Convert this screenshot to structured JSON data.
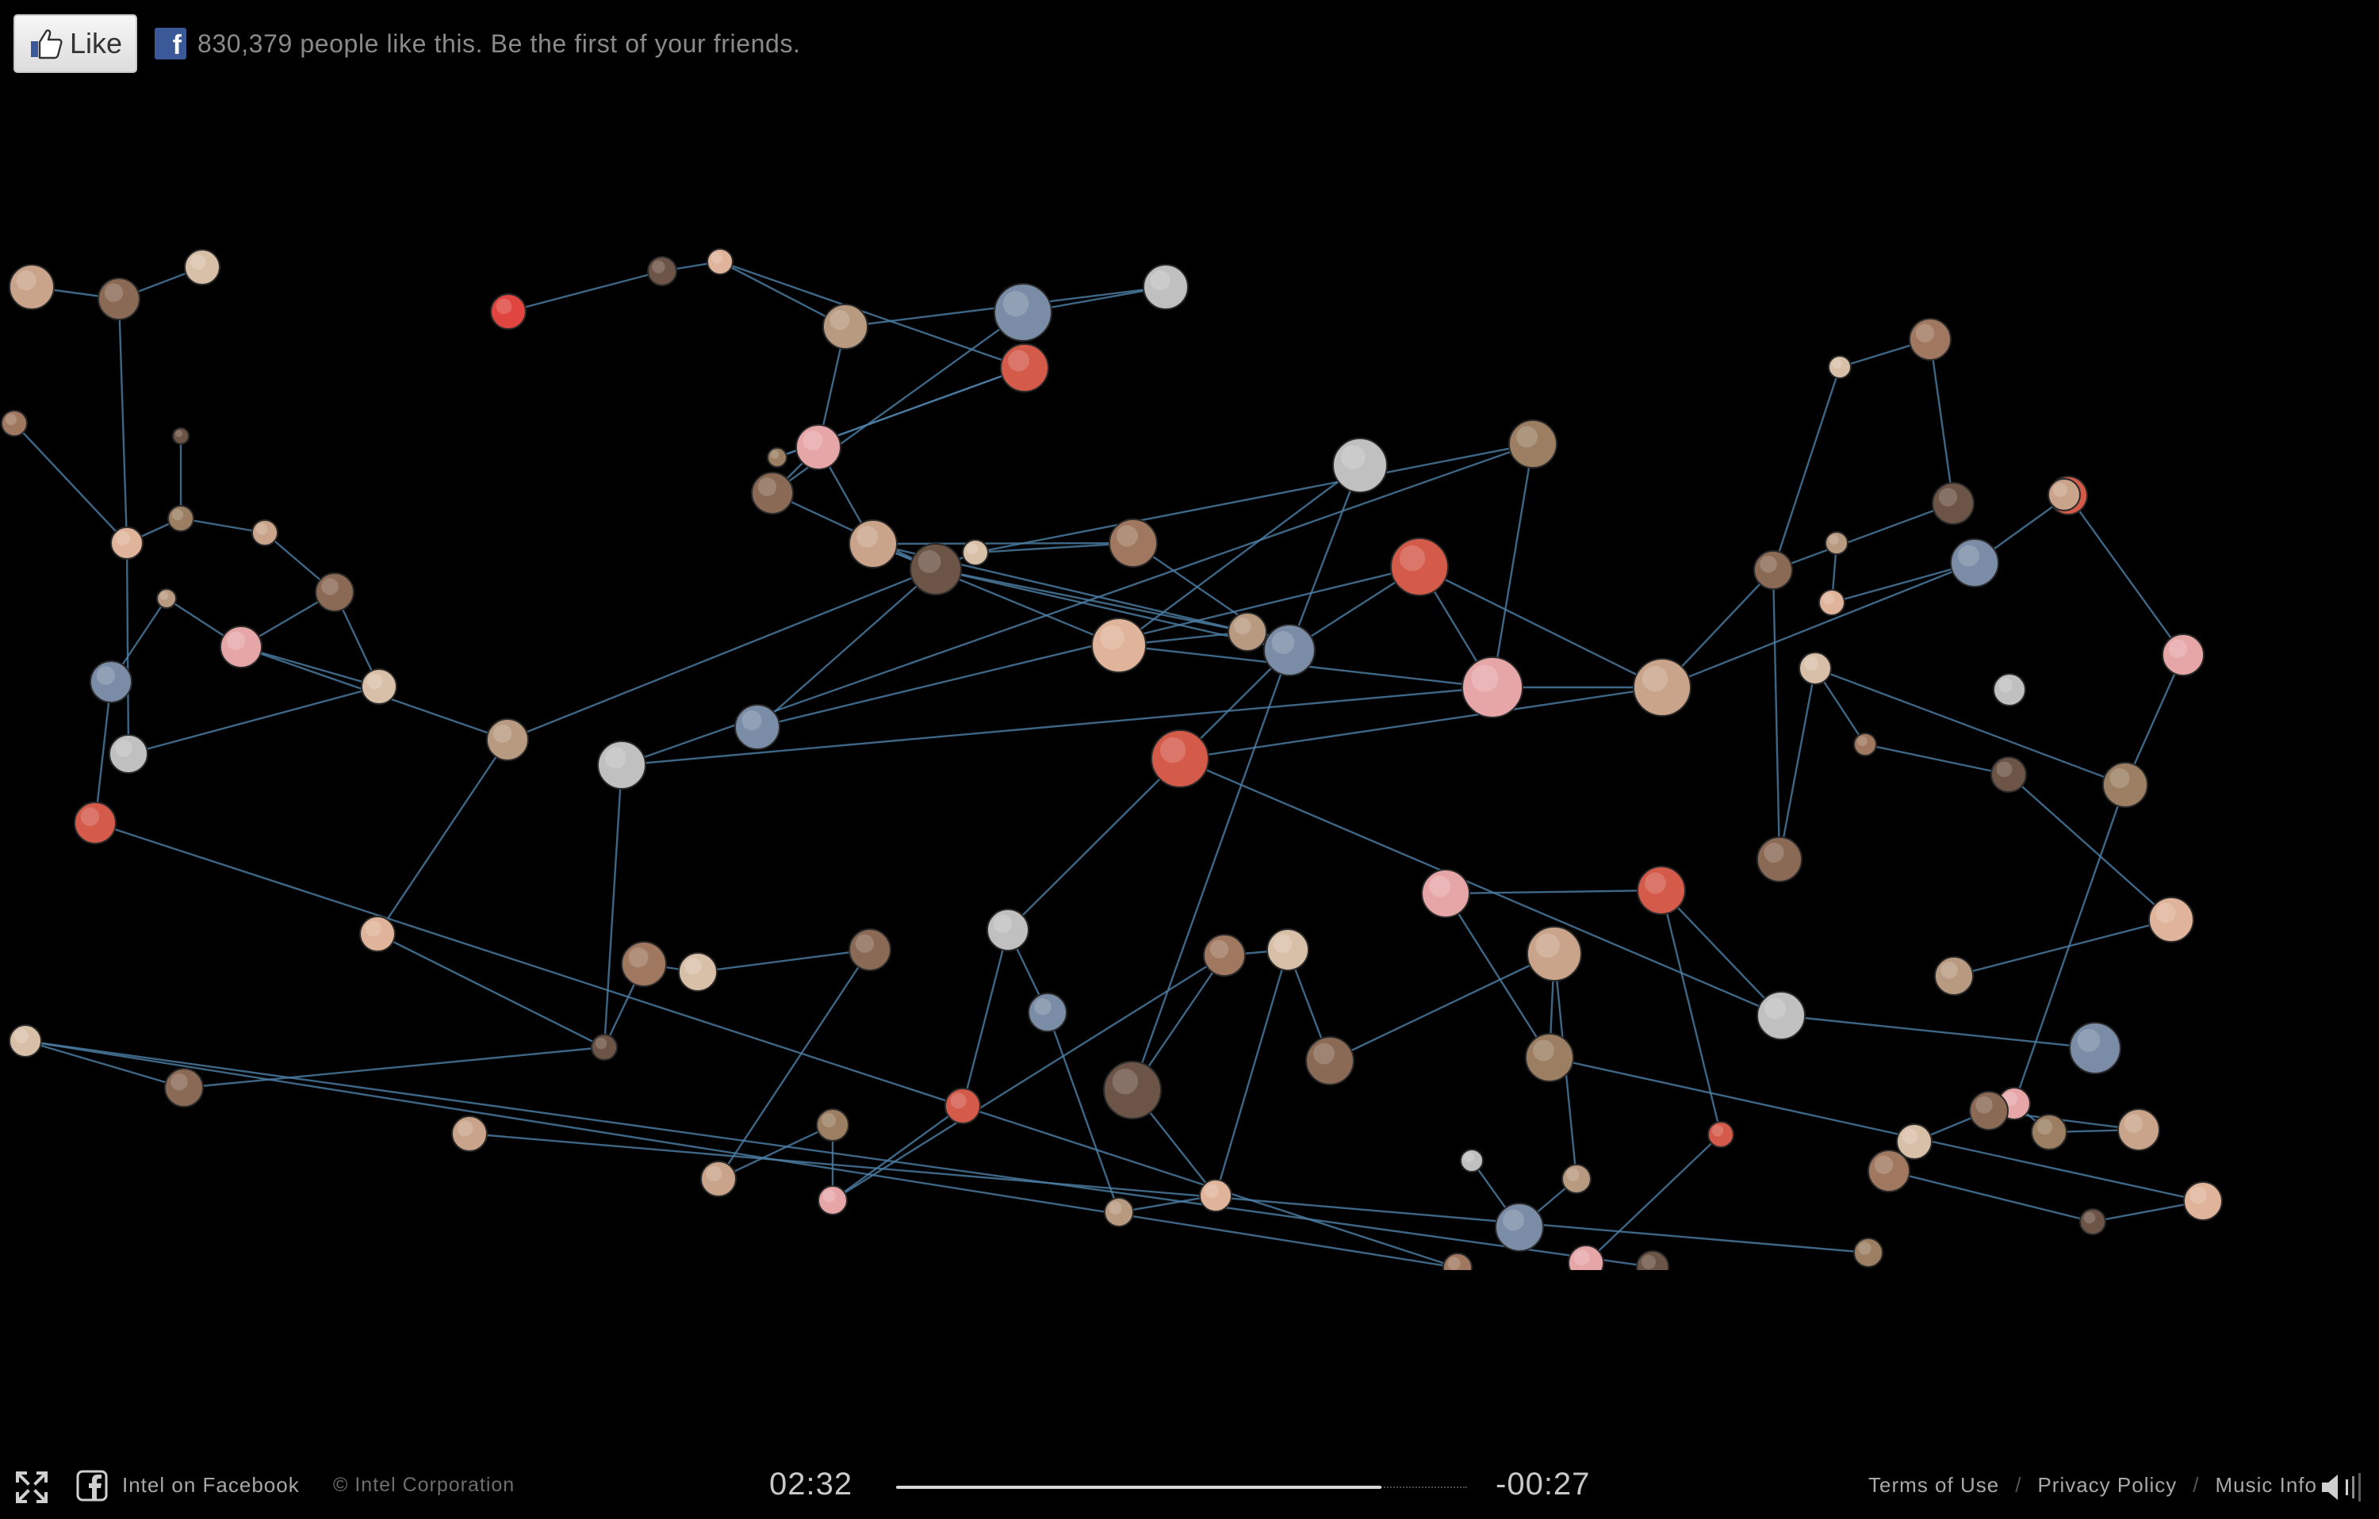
{
  "like_bar": {
    "like_label": "Like",
    "fb_badge_letter": "f",
    "like_text": "830,379 people like this. Be the first of your friends."
  },
  "footer": {
    "facebook_link": "Intel on Facebook",
    "copyright": "© Intel Corporation",
    "time_elapsed": "02:32",
    "time_remaining": "-00:27",
    "playback_progress": 0.85,
    "links": [
      "Terms of Use",
      "Privacy Policy",
      "Music Info"
    ],
    "separator": "/"
  },
  "icons": {
    "fullscreen": "fullscreen-icon",
    "facebook": "facebook-icon",
    "thumbs_up": "thumbs-up-icon",
    "volume": "volume-icon"
  },
  "colors": {
    "background": "#000000",
    "edge": "#4d7fa6",
    "facebook_blue": "#3b5998",
    "text": "#a8a8a8"
  }
}
